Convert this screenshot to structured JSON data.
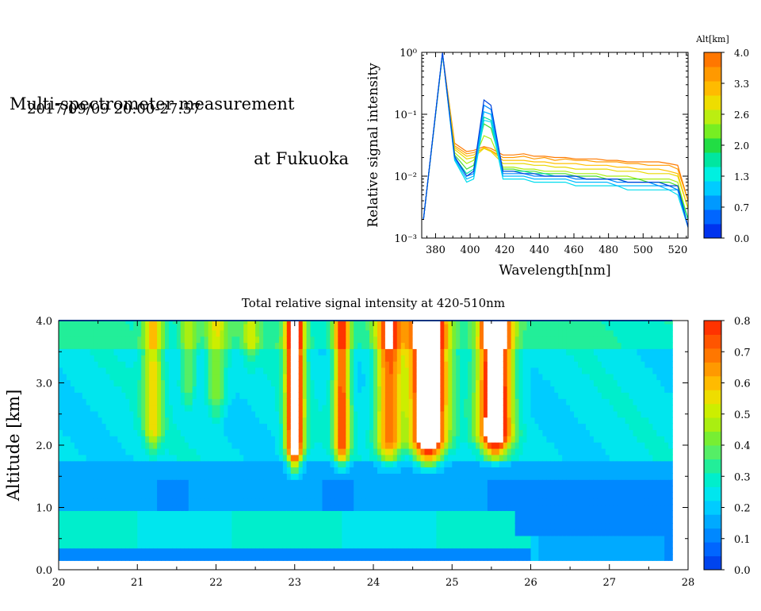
{
  "header": {
    "title_line1": "Multi-spectrometer measurement",
    "title_line2": "at Fukuoka",
    "datetime": "2017/09/09 20:00-27:57"
  },
  "chart_data": [
    {
      "type": "line",
      "xlabel": "Wavelength[nm]",
      "ylabel": "Relative signal intensity",
      "xlim": [
        372,
        526
      ],
      "ylim": [
        0.001,
        1
      ],
      "yscale": "log",
      "x_ticks": [
        "380",
        "400",
        "420",
        "440",
        "460",
        "480",
        "500",
        "520"
      ],
      "y_ticks": [
        "10⁻³",
        "10⁻²",
        "10⁻¹",
        "10⁰"
      ],
      "x": [
        373,
        384,
        391,
        398,
        402,
        408,
        412,
        419,
        425,
        431,
        437,
        443,
        449,
        455,
        461,
        467,
        473,
        479,
        485,
        491,
        497,
        503,
        509,
        515,
        520,
        526
      ],
      "colorbar": {
        "label": "Alt[km]",
        "tick_labels": [
          "4.0",
          "3.3",
          "2.6",
          "2.0",
          "1.3",
          "0.7",
          "0.0"
        ],
        "colors": [
          "#0033ee",
          "#0066ff",
          "#0099ff",
          "#00ccff",
          "#00f0e0",
          "#00e6a0",
          "#22dd44",
          "#77ee22",
          "#bbee11",
          "#eedd00",
          "#ffbb00",
          "#ff9900",
          "#ff7700"
        ]
      },
      "series": [
        {
          "color": "#ff7a00",
          "values": [
            0.002,
            0.95,
            0.034,
            0.025,
            0.026,
            0.03,
            0.028,
            0.022,
            0.022,
            0.023,
            0.021,
            0.021,
            0.02,
            0.02,
            0.019,
            0.019,
            0.019,
            0.018,
            0.018,
            0.017,
            0.017,
            0.017,
            0.017,
            0.016,
            0.015,
            0.004
          ]
        },
        {
          "color": "#ff9b00",
          "values": [
            0.002,
            0.93,
            0.031,
            0.023,
            0.024,
            0.028,
            0.026,
            0.02,
            0.02,
            0.021,
            0.019,
            0.02,
            0.018,
            0.019,
            0.018,
            0.018,
            0.017,
            0.017,
            0.017,
            0.016,
            0.016,
            0.015,
            0.015,
            0.015,
            0.013,
            0.004
          ]
        },
        {
          "color": "#ffc000",
          "values": [
            0.002,
            0.92,
            0.029,
            0.021,
            0.022,
            0.029,
            0.026,
            0.018,
            0.018,
            0.018,
            0.017,
            0.017,
            0.016,
            0.016,
            0.016,
            0.015,
            0.015,
            0.015,
            0.014,
            0.014,
            0.013,
            0.013,
            0.013,
            0.012,
            0.011,
            0.003
          ]
        },
        {
          "color": "#e8d800",
          "values": [
            0.002,
            0.92,
            0.027,
            0.019,
            0.02,
            0.028,
            0.025,
            0.016,
            0.016,
            0.016,
            0.015,
            0.015,
            0.014,
            0.014,
            0.013,
            0.013,
            0.013,
            0.013,
            0.012,
            0.012,
            0.012,
            0.011,
            0.011,
            0.011,
            0.01,
            0.003
          ]
        },
        {
          "color": "#aaee10",
          "values": [
            0.002,
            0.93,
            0.024,
            0.016,
            0.018,
            0.045,
            0.04,
            0.014,
            0.014,
            0.013,
            0.013,
            0.012,
            0.012,
            0.012,
            0.011,
            0.011,
            0.011,
            0.01,
            0.01,
            0.01,
            0.009,
            0.009,
            0.009,
            0.009,
            0.008,
            0.002
          ]
        },
        {
          "color": "#44dd33",
          "values": [
            0.002,
            0.94,
            0.022,
            0.013,
            0.015,
            0.07,
            0.06,
            0.013,
            0.013,
            0.012,
            0.012,
            0.011,
            0.011,
            0.011,
            0.01,
            0.01,
            0.01,
            0.009,
            0.009,
            0.009,
            0.009,
            0.008,
            0.008,
            0.008,
            0.007,
            0.002
          ]
        },
        {
          "color": "#00e0a0",
          "values": [
            0.002,
            0.95,
            0.02,
            0.011,
            0.013,
            0.09,
            0.08,
            0.012,
            0.012,
            0.012,
            0.011,
            0.011,
            0.01,
            0.01,
            0.01,
            0.009,
            0.009,
            0.009,
            0.009,
            0.008,
            0.008,
            0.008,
            0.008,
            0.007,
            0.006,
            0.002
          ]
        },
        {
          "color": "#00ddee",
          "values": [
            0.002,
            0.96,
            0.018,
            0.008,
            0.009,
            0.08,
            0.075,
            0.009,
            0.009,
            0.009,
            0.008,
            0.008,
            0.008,
            0.008,
            0.007,
            0.007,
            0.007,
            0.007,
            0.007,
            0.006,
            0.006,
            0.006,
            0.006,
            0.006,
            0.005,
            0.0015
          ]
        },
        {
          "color": "#00b8ff",
          "values": [
            0.002,
            0.97,
            0.019,
            0.009,
            0.01,
            0.11,
            0.1,
            0.01,
            0.01,
            0.01,
            0.009,
            0.009,
            0.009,
            0.009,
            0.008,
            0.008,
            0.008,
            0.008,
            0.007,
            0.007,
            0.007,
            0.007,
            0.007,
            0.006,
            0.006,
            0.0015
          ]
        },
        {
          "color": "#0088ff",
          "values": [
            0.002,
            0.98,
            0.02,
            0.01,
            0.011,
            0.14,
            0.12,
            0.011,
            0.011,
            0.011,
            0.01,
            0.01,
            0.01,
            0.01,
            0.009,
            0.009,
            0.009,
            0.009,
            0.008,
            0.008,
            0.008,
            0.008,
            0.007,
            0.007,
            0.006,
            0.0015
          ]
        },
        {
          "color": "#0044dd",
          "values": [
            0.002,
            0.99,
            0.021,
            0.01,
            0.012,
            0.17,
            0.14,
            0.012,
            0.012,
            0.011,
            0.011,
            0.01,
            0.01,
            0.01,
            0.01,
            0.009,
            0.009,
            0.009,
            0.009,
            0.008,
            0.008,
            0.008,
            0.008,
            0.007,
            0.007,
            0.0015
          ]
        }
      ]
    },
    {
      "type": "heatmap",
      "title": "Total relative signal intensity at 420-510nm",
      "xlabel": "",
      "ylabel": "Altitude [km]",
      "xlim": [
        20,
        28
      ],
      "ylim": [
        0,
        4
      ],
      "x_ticks": [
        "20",
        "21",
        "22",
        "23",
        "24",
        "25",
        "26",
        "27",
        "28"
      ],
      "y_ticks": [
        "0.0",
        "1.0",
        "2.0",
        "3.0",
        "4.0"
      ],
      "data_x_range": [
        20.0,
        27.8
      ],
      "data_y_range": [
        0.15,
        4.0
      ],
      "colorbar": {
        "tick_labels": [
          "0.0",
          "0.1",
          "0.2",
          "0.3",
          "0.4",
          "0.5",
          "0.6",
          "0.7",
          "0.8"
        ],
        "colors": [
          "#0044ee",
          "#0066ff",
          "#0088ff",
          "#00aaff",
          "#00ccff",
          "#00e6ee",
          "#00eecc",
          "#22ee99",
          "#55ee66",
          "#77ee33",
          "#aaee11",
          "#ccee00",
          "#eedd00",
          "#ffbb00",
          "#ff9900",
          "#ff7700",
          "#ff5500",
          "#ff3300"
        ],
        "over_color": "#ffffff"
      },
      "plumes": [
        {
          "center": 21.2,
          "half_width": 0.12,
          "base": 1.9,
          "peak": 0.55
        },
        {
          "center": 21.65,
          "half_width": 0.1,
          "base": 2.6,
          "peak": 0.42
        },
        {
          "center": 22.0,
          "half_width": 0.12,
          "base": 2.4,
          "peak": 0.45
        },
        {
          "center": 22.45,
          "half_width": 0.09,
          "base": 3.3,
          "peak": 0.42
        },
        {
          "center": 23.0,
          "half_width": 0.11,
          "base": 1.6,
          "peak": 0.95
        },
        {
          "center": 23.6,
          "half_width": 0.1,
          "base": 1.65,
          "peak": 0.75
        },
        {
          "center": 24.2,
          "half_width": 0.16,
          "base": 1.7,
          "peak": 0.72
        },
        {
          "center": 24.7,
          "half_width": 0.22,
          "base": 1.7,
          "peak": 1.05
        },
        {
          "center": 25.55,
          "half_width": 0.2,
          "base": 1.8,
          "peak": 1.0
        }
      ]
    }
  ]
}
